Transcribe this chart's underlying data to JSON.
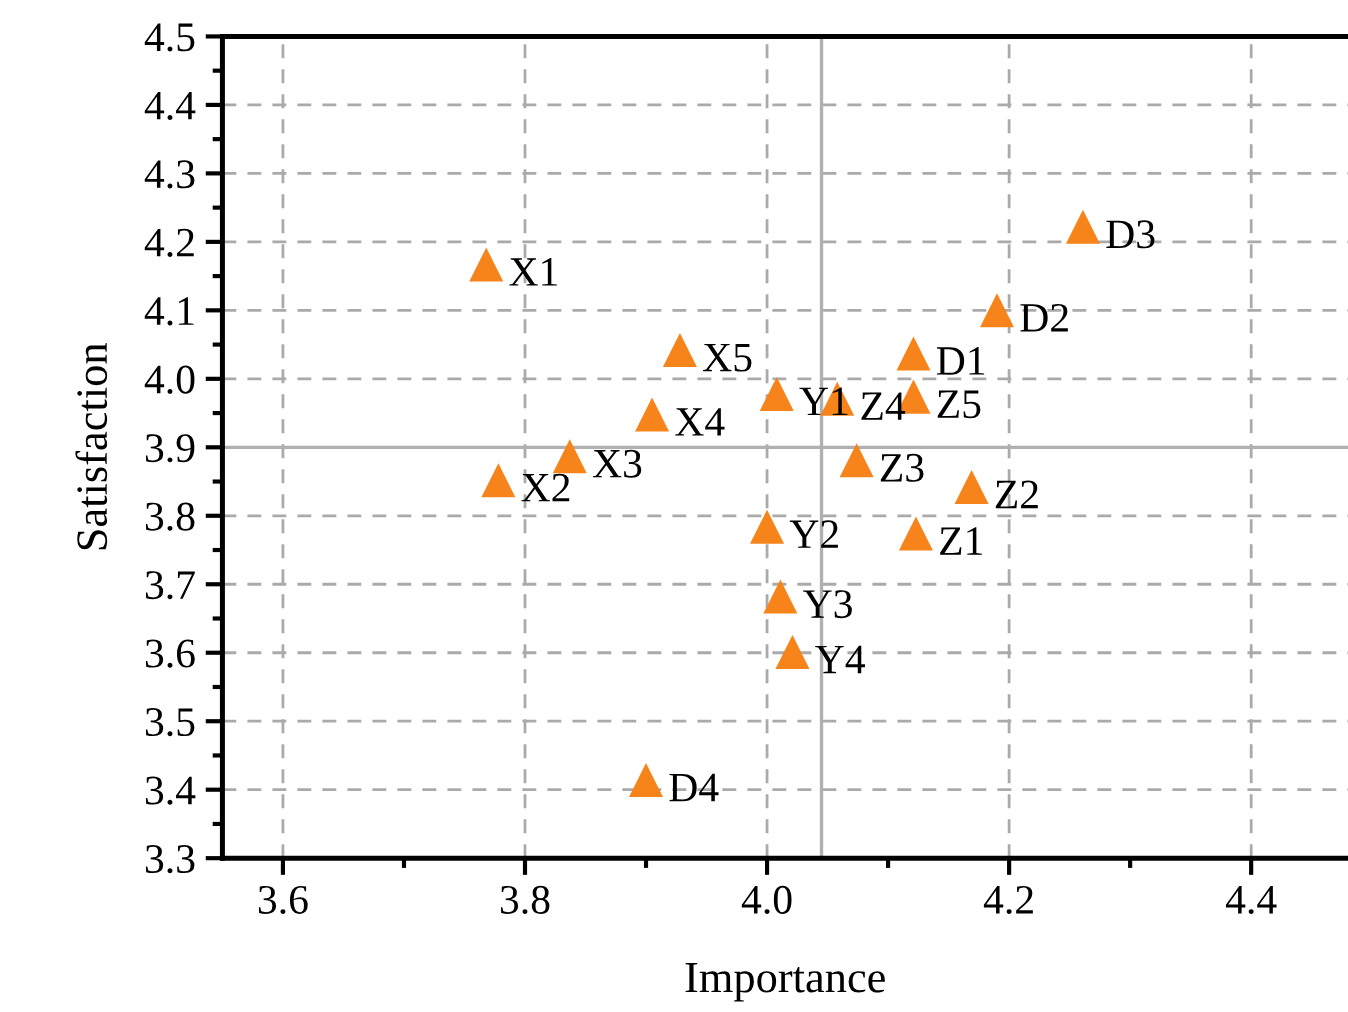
{
  "chart_data": {
    "type": "scatter",
    "xlabel": "Importance",
    "ylabel": "Satisfaction",
    "x": [
      3.768,
      3.778,
      3.837,
      3.905,
      3.928,
      4.008,
      4.0,
      4.011,
      4.021,
      4.123,
      4.169,
      4.074,
      4.058,
      4.121,
      4.121,
      4.19,
      4.261,
      3.9
    ],
    "values": [
      4.167,
      3.852,
      3.887,
      3.948,
      4.042,
      3.978,
      3.784,
      3.682,
      3.601,
      3.774,
      3.842,
      3.881,
      3.971,
      3.974,
      4.037,
      4.1,
      4.222,
      3.414
    ],
    "color": "#f7841a",
    "marker": "triangle",
    "annotations": [
      {
        "text": "X1",
        "x": 3.768,
        "y": 4.167
      },
      {
        "text": "X2",
        "x": 3.778,
        "y": 3.852
      },
      {
        "text": "X3",
        "x": 3.837,
        "y": 3.887
      },
      {
        "text": "X4",
        "x": 3.905,
        "y": 3.948
      },
      {
        "text": "X5",
        "x": 3.928,
        "y": 4.042
      },
      {
        "text": "Y1",
        "x": 4.008,
        "y": 3.978
      },
      {
        "text": "Y2",
        "x": 4.0,
        "y": 3.784
      },
      {
        "text": "Y3",
        "x": 4.011,
        "y": 3.682
      },
      {
        "text": "Y4",
        "x": 4.021,
        "y": 3.601
      },
      {
        "text": "Z1",
        "x": 4.123,
        "y": 3.774
      },
      {
        "text": "Z2",
        "x": 4.169,
        "y": 3.842
      },
      {
        "text": "Z3",
        "x": 4.074,
        "y": 3.881
      },
      {
        "text": "Z4",
        "x": 4.058,
        "y": 3.971
      },
      {
        "text": "Z5",
        "x": 4.121,
        "y": 3.974
      },
      {
        "text": "D1",
        "x": 4.121,
        "y": 4.037
      },
      {
        "text": "D2",
        "x": 4.19,
        "y": 4.1
      },
      {
        "text": "D3",
        "x": 4.261,
        "y": 4.222
      },
      {
        "text": "D4",
        "x": 3.9,
        "y": 3.414
      }
    ],
    "xlim": [
      3.55,
      4.48
    ],
    "ylim": [
      3.3,
      4.5
    ],
    "xticks": [
      3.6,
      {
        "value": 3.7,
        "label": null
      },
      3.8,
      {
        "value": 3.9,
        "label": null
      },
      {
        "value": 4,
        "label": "4.0"
      },
      {
        "value": 4.1,
        "label": null
      },
      4.2,
      {
        "value": 4.3,
        "label": null
      },
      4.4
    ],
    "yticks": [
      3.3,
      {
        "value": 3.35,
        "label": null
      },
      3.4,
      {
        "value": 3.45,
        "label": null
      },
      3.5,
      {
        "value": 3.55,
        "label": null
      },
      3.6,
      {
        "value": 3.65,
        "label": null
      },
      3.7,
      {
        "value": 3.75,
        "label": null
      },
      3.8,
      {
        "value": 3.85,
        "label": null
      },
      3.9,
      {
        "value": 3.95,
        "label": null
      },
      {
        "value": 4,
        "label": "4.0"
      },
      {
        "value": 4.05,
        "label": null
      },
      4.1,
      {
        "value": 4.15,
        "label": null
      },
      4.2,
      {
        "value": 4.25,
        "label": null
      },
      4.3,
      {
        "value": 4.35,
        "label": null
      },
      4.4,
      {
        "value": 4.45,
        "label": null
      },
      4.5
    ],
    "grid": true,
    "ref_lines": [
      {
        "axis": "x",
        "value": 4.045,
        "label": null,
        "color": "#b0b0b0"
      },
      {
        "axis": "y",
        "value": 3.9,
        "label": null,
        "color": "#b0b0b0"
      }
    ]
  }
}
